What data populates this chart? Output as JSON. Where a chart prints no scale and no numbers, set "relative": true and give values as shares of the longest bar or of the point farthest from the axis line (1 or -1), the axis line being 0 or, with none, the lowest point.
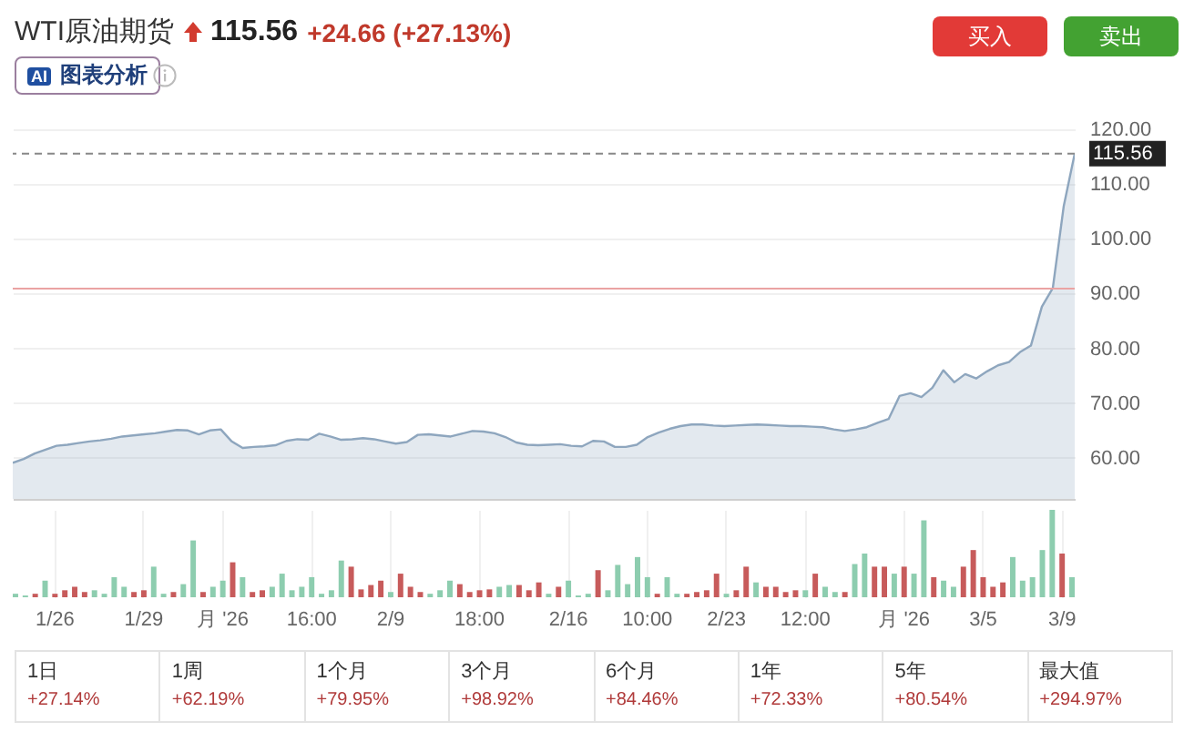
{
  "chart_data": [
    {
      "type": "area",
      "title": "WTI原油期货",
      "subtitle": "115.56 +24.66 (+27.13%)",
      "annotations": [
        "买入",
        "卖出",
        "AI",
        "图表分析"
      ],
      "categories": [
        null,
        null,
        null,
        null,
        null,
        null,
        null,
        null,
        null,
        null,
        null,
        null,
        null,
        null,
        null,
        null,
        null,
        null,
        null,
        null,
        null,
        null,
        null,
        null,
        null,
        null,
        null,
        null,
        null,
        null,
        null,
        null,
        null,
        null,
        null,
        null,
        null,
        null,
        null,
        null,
        null,
        null,
        null,
        null,
        null,
        null,
        null,
        null,
        null,
        null,
        null,
        null,
        null,
        null,
        null,
        null,
        null,
        null,
        null,
        null,
        null,
        null,
        null,
        null,
        null,
        null,
        null,
        null,
        null,
        null,
        null,
        null,
        null,
        null,
        null,
        null,
        null,
        null,
        null,
        null,
        null,
        null,
        null,
        null,
        null,
        null,
        null,
        null,
        null,
        null,
        null,
        null,
        null,
        null,
        null,
        null,
        null,
        null
      ],
      "values": [
        59.1,
        59.8,
        60.8,
        61.5,
        62.2,
        62.4,
        62.7,
        63.0,
        63.2,
        63.5,
        63.9,
        64.1,
        64.3,
        64.5,
        64.8,
        65.1,
        65.0,
        64.3,
        65.0,
        65.2,
        63.0,
        61.8,
        62.0,
        62.1,
        62.3,
        63.1,
        63.4,
        63.3,
        64.4,
        63.9,
        63.3,
        63.4,
        63.6,
        63.4,
        63.0,
        62.6,
        62.9,
        64.2,
        64.3,
        64.1,
        63.9,
        64.4,
        64.9,
        64.8,
        64.5,
        63.8,
        62.8,
        62.4,
        62.3,
        62.4,
        62.5,
        62.2,
        62.1,
        63.1,
        63.0,
        62.0,
        62.0,
        62.4,
        63.8,
        64.6,
        65.3,
        65.8,
        66.1,
        66.1,
        65.9,
        65.8,
        65.9,
        66.0,
        66.1,
        66.0,
        65.9,
        65.8,
        65.8,
        65.7,
        65.6,
        65.2,
        64.9,
        65.2,
        65.6,
        66.4,
        67.1,
        71.3,
        71.8,
        71.1,
        72.8,
        76.0,
        73.8,
        75.3,
        74.5,
        75.8,
        76.9,
        77.5,
        79.3,
        80.5,
        87.6,
        91.0,
        106.0,
        115.56
      ],
      "color": "#8ea6be",
      "ylim": [
        52.5,
        120
      ],
      "yticks": [
        {
          "value": 60,
          "label": "60.00"
        },
        {
          "value": 70,
          "label": "70.00"
        },
        {
          "value": 80,
          "label": "80.00"
        },
        {
          "value": 90,
          "label": "90.00"
        },
        {
          "value": 100,
          "label": "100.00"
        },
        {
          "value": 110,
          "label": "110.00"
        },
        {
          "value": 120,
          "label": "120.00"
        }
      ],
      "grid": true,
      "ref_lines": [
        {
          "axis": "y",
          "value": 115.56,
          "label": "115.56",
          "color": "#888888",
          "line_style": "dashed"
        },
        {
          "axis": "y",
          "value": 90.9,
          "color": "#eaa3a3"
        }
      ]
    },
    {
      "type": "bar",
      "relative": true,
      "grid": "x",
      "categories": [
        null,
        null,
        null,
        null,
        "1/26",
        null,
        null,
        null,
        null,
        null,
        null,
        null,
        null,
        "1/29",
        null,
        null,
        null,
        null,
        null,
        null,
        null,
        "月 '26",
        null,
        null,
        null,
        null,
        null,
        null,
        null,
        null,
        "16:00",
        null,
        null,
        null,
        null,
        null,
        null,
        null,
        "2/9",
        null,
        null,
        null,
        null,
        null,
        null,
        null,
        null,
        "18:00",
        null,
        null,
        null,
        null,
        null,
        null,
        null,
        null,
        "2/16",
        null,
        null,
        null,
        null,
        null,
        null,
        null,
        "10:00",
        null,
        null,
        null,
        null,
        null,
        null,
        null,
        "2/23",
        null,
        null,
        null,
        null,
        null,
        null,
        null,
        "12:00",
        null,
        null,
        null,
        null,
        null,
        null,
        null,
        null,
        null,
        "月 '26",
        null,
        null,
        null,
        null,
        null,
        null,
        null,
        "3/5",
        null,
        null,
        null,
        null,
        null,
        null,
        null,
        "3/9",
        null
      ],
      "values": [
        0.04,
        0.02,
        0.04,
        0.19,
        0.04,
        0.08,
        0.12,
        0.06,
        0.08,
        0.04,
        0.23,
        0.12,
        0.06,
        0.08,
        0.35,
        0.04,
        0.06,
        0.15,
        0.65,
        0.06,
        0.12,
        0.19,
        0.4,
        0.23,
        0.06,
        0.08,
        0.12,
        0.27,
        0.08,
        0.12,
        0.23,
        0.04,
        0.08,
        0.42,
        0.35,
        0.09,
        0.14,
        0.19,
        0.06,
        0.27,
        0.12,
        0.06,
        0.04,
        0.08,
        0.19,
        0.15,
        0.06,
        0.08,
        0.09,
        0.12,
        0.14,
        0.14,
        0.08,
        0.17,
        0.04,
        0.12,
        0.19,
        0.02,
        0.04,
        0.31,
        0.08,
        0.37,
        0.15,
        0.46,
        0.23,
        0.04,
        0.23,
        0.04,
        0.04,
        0.06,
        0.08,
        0.27,
        0.04,
        0.08,
        0.35,
        0.17,
        0.12,
        0.12,
        0.06,
        0.08,
        0.08,
        0.27,
        0.12,
        0.06,
        0.06,
        0.38,
        0.5,
        0.35,
        0.35,
        0.27,
        0.35,
        0.27,
        0.88,
        0.23,
        0.19,
        0.12,
        0.35,
        0.54,
        0.23,
        0.12,
        0.17,
        0.46,
        0.19,
        0.23,
        0.54,
        1,
        0.5,
        0.23
      ],
      "colors": [
        "#8dcdaf",
        "#8dcdaf",
        "#c75b5b",
        "#8dcdaf",
        "#c75b5b",
        "#c75b5b",
        "#c75b5b",
        "#c75b5b",
        "#8dcdaf",
        "#8dcdaf",
        "#8dcdaf",
        "#8dcdaf",
        "#c75b5b",
        "#c75b5b",
        "#8dcdaf",
        "#8dcdaf",
        "#c75b5b",
        "#8dcdaf",
        "#8dcdaf",
        "#c75b5b",
        "#8dcdaf",
        "#8dcdaf",
        "#c75b5b",
        "#8dcdaf",
        "#c75b5b",
        "#c75b5b",
        "#8dcdaf",
        "#8dcdaf",
        "#8dcdaf",
        "#8dcdaf",
        "#8dcdaf",
        "#8dcdaf",
        "#8dcdaf",
        "#8dcdaf",
        "#c75b5b",
        "#c75b5b",
        "#c75b5b",
        "#c75b5b",
        "#8dcdaf",
        "#c75b5b",
        "#c75b5b",
        "#c75b5b",
        "#8dcdaf",
        "#8dcdaf",
        "#8dcdaf",
        "#c75b5b",
        "#c75b5b",
        "#c75b5b",
        "#c75b5b",
        "#8dcdaf",
        "#8dcdaf",
        "#c75b5b",
        "#c75b5b",
        "#c75b5b",
        "#8dcdaf",
        "#c75b5b",
        "#8dcdaf",
        "#8dcdaf",
        "#8dcdaf",
        "#c75b5b",
        "#8dcdaf",
        "#8dcdaf",
        "#8dcdaf",
        "#8dcdaf",
        "#8dcdaf",
        "#c75b5b",
        "#8dcdaf",
        "#8dcdaf",
        "#c75b5b",
        "#c75b5b",
        "#c75b5b",
        "#c75b5b",
        "#8dcdaf",
        "#c75b5b",
        "#c75b5b",
        "#8dcdaf",
        "#c75b5b",
        "#c75b5b",
        "#c75b5b",
        "#c75b5b",
        "#8dcdaf",
        "#c75b5b",
        "#8dcdaf",
        "#8dcdaf",
        "#c75b5b",
        "#8dcdaf",
        "#8dcdaf",
        "#c75b5b",
        "#c75b5b",
        "#8dcdaf",
        "#c75b5b",
        "#8dcdaf",
        "#8dcdaf",
        "#c75b5b",
        "#8dcdaf",
        "#8dcdaf",
        "#c75b5b",
        "#c75b5b",
        "#c75b5b",
        "#c75b5b",
        "#c75b5b",
        "#8dcdaf",
        "#8dcdaf",
        "#8dcdaf",
        "#8dcdaf",
        "#8dcdaf",
        "#c75b5b",
        "#8dcdaf"
      ]
    },
    {
      "type": "other",
      "categories": [
        "1日",
        "1周",
        "1个月",
        "3个月",
        "6个月",
        "1年",
        "5年",
        "最大值"
      ],
      "annotations": [
        "+27.14%",
        "+62.19%",
        "+79.95%",
        "+98.92%",
        "+84.46%",
        "+72.33%",
        "+80.54%",
        "+294.97%"
      ]
    }
  ]
}
